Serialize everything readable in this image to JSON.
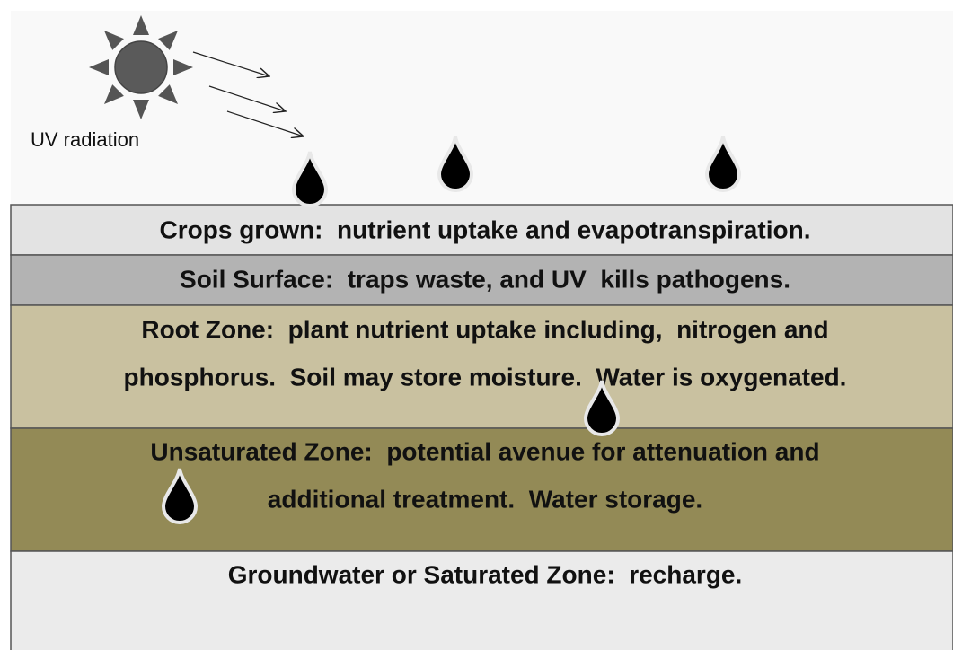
{
  "label": "UV radiation",
  "layers": [
    {
      "lines": [
        "Crops grown:  nutrient uptake and evapotranspiration."
      ]
    },
    {
      "lines": [
        "Soil Surface:  traps waste, and UV  kills pathogens."
      ]
    },
    {
      "lines": [
        "Root Zone:  plant nutrient uptake including,  nitrogen and",
        "phosphorus.  Soil may store moisture.  Water is oxygenated."
      ]
    },
    {
      "lines": [
        "Unsaturated Zone:  potential avenue for attenuation and",
        "additional treatment.  Water storage."
      ]
    },
    {
      "lines": [
        "Groundwater or Saturated Zone:  recharge."
      ]
    }
  ]
}
